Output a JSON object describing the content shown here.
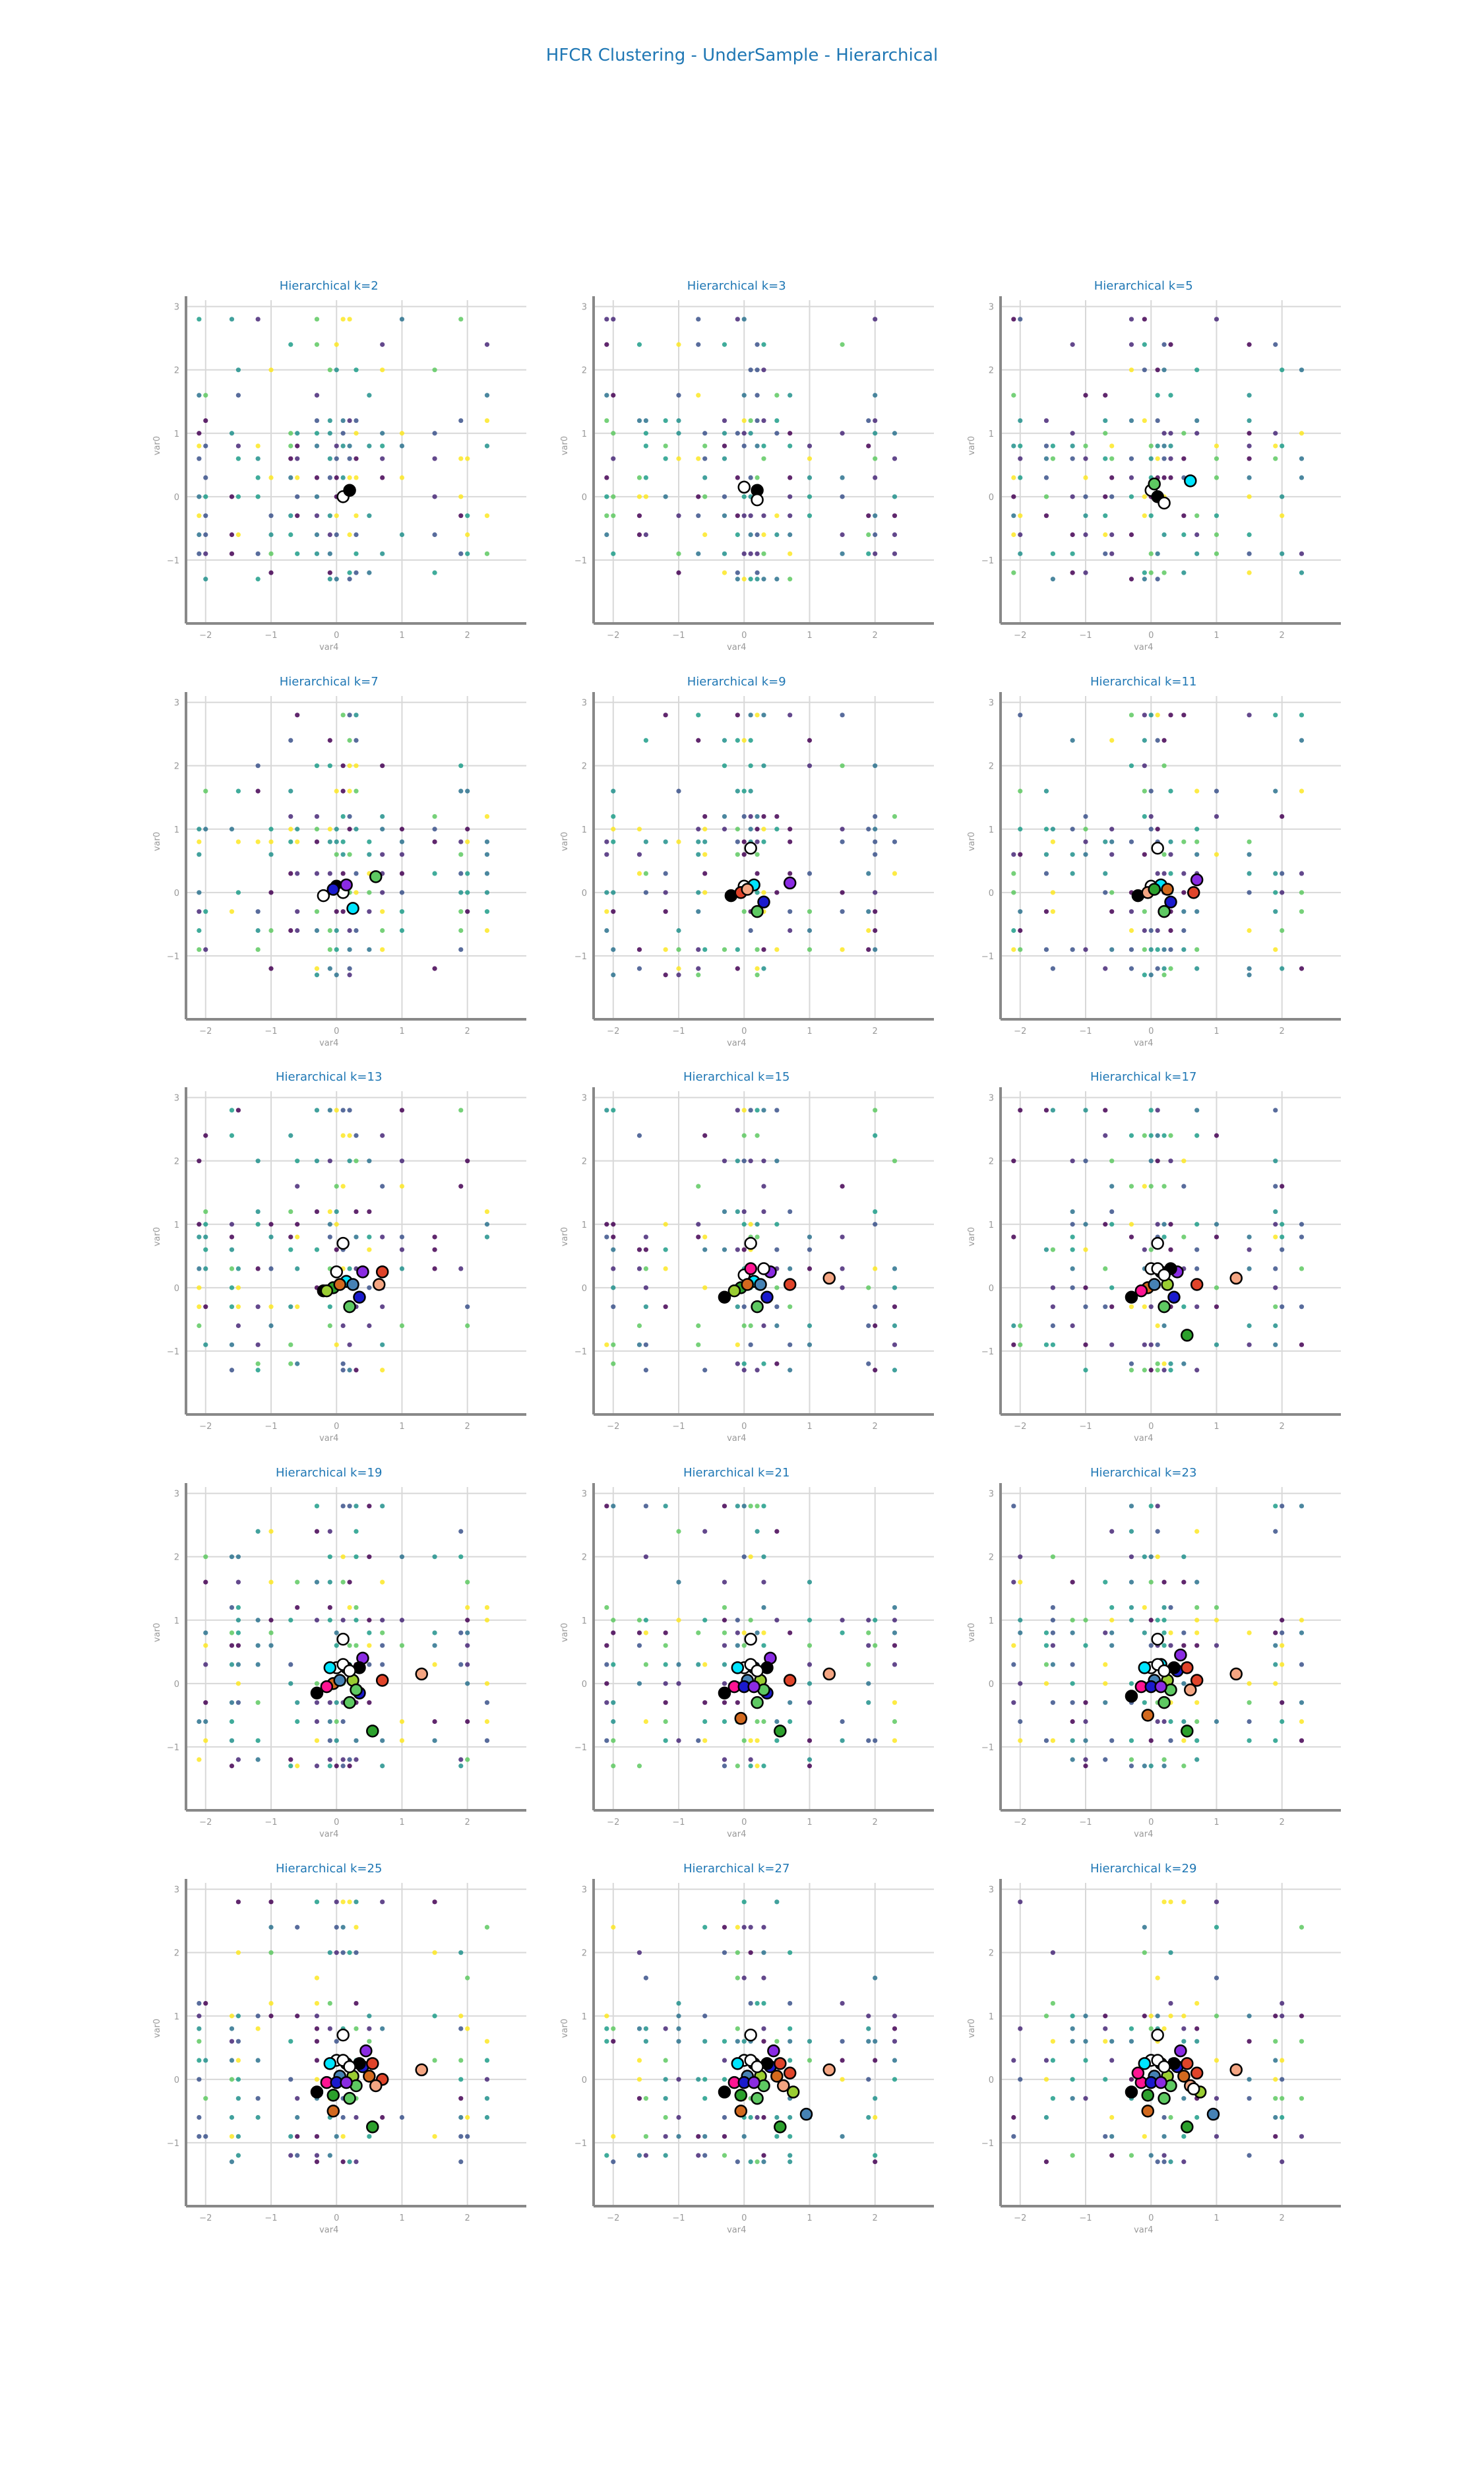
{
  "title": "HFCR Clustering - UnderSample - Hierarchical",
  "chart_data": {
    "type": "scatter",
    "layout": "small-multiples 5x3",
    "xlabel": "var4",
    "ylabel": "var0",
    "xlim": [
      -2.3,
      2.9
    ],
    "ylim": [
      -2.0,
      3.1
    ],
    "xticks": [
      -2,
      -1,
      0,
      1,
      2
    ],
    "yticks": [
      -1,
      0,
      1,
      2,
      3
    ],
    "grid": true,
    "point_columns": [
      -2.1,
      -2.0,
      -1.6,
      -1.5,
      -1.2,
      -1.0,
      -0.7,
      -0.6,
      -0.3,
      -0.1,
      0.0,
      0.1,
      0.2,
      0.3,
      0.5,
      0.7,
      1.0,
      1.5,
      1.9,
      2.0,
      2.3
    ],
    "point_rows": [
      -1.3,
      -1.2,
      -0.9,
      -0.6,
      -0.3,
      0.0,
      0.3,
      0.6,
      0.8,
      1.0,
      1.2,
      1.6,
      2.0,
      2.4,
      2.8
    ],
    "point_palette": [
      "#440154",
      "#3b528b",
      "#21918c",
      "#5ec962",
      "#fde725",
      "#482878",
      "#2c728e",
      "#1f9e89"
    ],
    "centroid_palette": [
      "#ffffff",
      "#000000",
      "#ffffff",
      "#00e5ff",
      "#5ec962",
      "#1a1acd",
      "#8a2be2",
      "#e0442a",
      "#f4a582",
      "#2ca02c",
      "#d2691e",
      "#4682b4",
      "#9acd32",
      "#ff1493"
    ],
    "panels": [
      {
        "title": "Hierarchical k=2",
        "k": 2,
        "centroids": [
          [
            0.1,
            0.0
          ],
          [
            0.2,
            0.1
          ]
        ]
      },
      {
        "title": "Hierarchical k=3",
        "k": 3,
        "centroids": [
          [
            0.0,
            0.15
          ],
          [
            0.2,
            0.1
          ],
          [
            0.2,
            -0.05
          ]
        ]
      },
      {
        "title": "Hierarchical k=5",
        "k": 5,
        "centroids": [
          [
            0.0,
            0.1
          ],
          [
            0.1,
            0.0
          ],
          [
            0.2,
            -0.1
          ],
          [
            0.6,
            0.25
          ],
          [
            0.05,
            0.2
          ]
        ]
      },
      {
        "title": "Hierarchical k=7",
        "k": 7,
        "centroids": [
          [
            -0.2,
            -0.05
          ],
          [
            0.0,
            0.1
          ],
          [
            0.1,
            0.0
          ],
          [
            0.25,
            -0.25
          ],
          [
            0.6,
            0.25
          ],
          [
            -0.05,
            0.05
          ],
          [
            0.15,
            0.12
          ]
        ]
      },
      {
        "title": "Hierarchical k=9",
        "k": 9,
        "centroids": [
          [
            0.1,
            0.7
          ],
          [
            -0.2,
            -0.05
          ],
          [
            0.0,
            0.1
          ],
          [
            0.15,
            0.12
          ],
          [
            0.2,
            -0.3
          ],
          [
            0.3,
            -0.15
          ],
          [
            0.7,
            0.15
          ],
          [
            -0.05,
            0.0
          ],
          [
            0.05,
            0.05
          ]
        ]
      },
      {
        "title": "Hierarchical k=11",
        "k": 11,
        "centroids": [
          [
            0.1,
            0.7
          ],
          [
            -0.2,
            -0.05
          ],
          [
            0.0,
            0.1
          ],
          [
            0.15,
            0.12
          ],
          [
            0.2,
            -0.3
          ],
          [
            0.3,
            -0.15
          ],
          [
            0.7,
            0.2
          ],
          [
            0.65,
            0.0
          ],
          [
            -0.05,
            0.0
          ],
          [
            0.05,
            0.05
          ],
          [
            0.25,
            0.05
          ]
        ]
      },
      {
        "title": "Hierarchical k=13",
        "k": 13,
        "centroids": [
          [
            0.1,
            0.7
          ],
          [
            -0.2,
            -0.05
          ],
          [
            0.0,
            0.25
          ],
          [
            0.15,
            0.1
          ],
          [
            0.2,
            -0.3
          ],
          [
            0.35,
            -0.15
          ],
          [
            0.4,
            0.25
          ],
          [
            0.7,
            0.25
          ],
          [
            0.65,
            0.05
          ],
          [
            -0.05,
            0.0
          ],
          [
            0.05,
            0.05
          ],
          [
            0.25,
            0.05
          ],
          [
            -0.15,
            -0.05
          ]
        ]
      },
      {
        "title": "Hierarchical k=15",
        "k": 15,
        "centroids": [
          [
            0.1,
            0.7
          ],
          [
            -0.3,
            -0.15
          ],
          [
            0.0,
            0.2
          ],
          [
            0.15,
            0.1
          ],
          [
            0.2,
            -0.3
          ],
          [
            0.35,
            -0.15
          ],
          [
            0.4,
            0.25
          ],
          [
            0.7,
            0.05
          ],
          [
            1.3,
            0.15
          ],
          [
            -0.05,
            0.0
          ],
          [
            0.05,
            0.05
          ],
          [
            0.25,
            0.05
          ],
          [
            -0.15,
            -0.05
          ],
          [
            0.1,
            0.3
          ],
          [
            0.3,
            0.3
          ]
        ]
      },
      {
        "title": "Hierarchical k=17",
        "k": 17,
        "centroids": [
          [
            0.1,
            0.7
          ],
          [
            -0.3,
            -0.15
          ],
          [
            0.0,
            0.3
          ],
          [
            0.15,
            0.25
          ],
          [
            0.2,
            -0.3
          ],
          [
            0.35,
            -0.15
          ],
          [
            0.4,
            0.25
          ],
          [
            0.7,
            0.05
          ],
          [
            1.3,
            0.15
          ],
          [
            0.55,
            -0.75
          ],
          [
            -0.05,
            0.0
          ],
          [
            0.05,
            0.05
          ],
          [
            0.25,
            0.05
          ],
          [
            -0.15,
            -0.05
          ],
          [
            0.1,
            0.3
          ],
          [
            0.3,
            0.3
          ],
          [
            0.2,
            0.2
          ]
        ]
      },
      {
        "title": "Hierarchical k=19",
        "k": 19,
        "centroids": [
          [
            0.1,
            0.7
          ],
          [
            -0.3,
            -0.15
          ],
          [
            0.0,
            0.25
          ],
          [
            0.15,
            0.25
          ],
          [
            0.2,
            -0.3
          ],
          [
            0.35,
            -0.15
          ],
          [
            0.4,
            0.4
          ],
          [
            0.7,
            0.05
          ],
          [
            1.3,
            0.15
          ],
          [
            0.55,
            -0.75
          ],
          [
            -0.05,
            0.0
          ],
          [
            0.05,
            0.05
          ],
          [
            0.25,
            0.05
          ],
          [
            -0.15,
            -0.05
          ],
          [
            0.1,
            0.3
          ],
          [
            0.35,
            0.25
          ],
          [
            0.2,
            0.2
          ],
          [
            -0.1,
            0.25
          ],
          [
            0.3,
            -0.1
          ]
        ]
      },
      {
        "title": "Hierarchical k=21",
        "k": 21,
        "centroids": [
          [
            0.1,
            0.7
          ],
          [
            -0.3,
            -0.15
          ],
          [
            0.0,
            0.25
          ],
          [
            0.15,
            0.25
          ],
          [
            0.2,
            -0.3
          ],
          [
            0.35,
            -0.15
          ],
          [
            0.4,
            0.4
          ],
          [
            0.7,
            0.05
          ],
          [
            1.3,
            0.15
          ],
          [
            0.55,
            -0.75
          ],
          [
            -0.05,
            -0.55
          ],
          [
            0.05,
            0.05
          ],
          [
            0.25,
            0.05
          ],
          [
            -0.15,
            -0.05
          ],
          [
            0.1,
            0.3
          ],
          [
            0.35,
            0.25
          ],
          [
            0.2,
            0.2
          ],
          [
            -0.1,
            0.25
          ],
          [
            0.3,
            -0.1
          ],
          [
            0.0,
            -0.05
          ],
          [
            0.15,
            -0.05
          ]
        ]
      },
      {
        "title": "Hierarchical k=23",
        "k": 23,
        "centroids": [
          [
            0.1,
            0.7
          ],
          [
            -0.3,
            -0.2
          ],
          [
            0.0,
            0.25
          ],
          [
            0.15,
            0.3
          ],
          [
            0.2,
            -0.3
          ],
          [
            0.4,
            0.2
          ],
          [
            0.45,
            0.45
          ],
          [
            0.7,
            0.05
          ],
          [
            1.3,
            0.15
          ],
          [
            0.55,
            -0.75
          ],
          [
            -0.05,
            -0.5
          ],
          [
            0.05,
            0.05
          ],
          [
            0.25,
            0.05
          ],
          [
            -0.15,
            -0.05
          ],
          [
            0.1,
            0.3
          ],
          [
            0.35,
            0.25
          ],
          [
            0.2,
            0.2
          ],
          [
            -0.1,
            0.25
          ],
          [
            0.3,
            -0.1
          ],
          [
            0.0,
            -0.05
          ],
          [
            0.15,
            -0.05
          ],
          [
            0.55,
            0.25
          ],
          [
            0.6,
            -0.1
          ]
        ]
      },
      {
        "title": "Hierarchical k=25",
        "k": 25,
        "centroids": [
          [
            0.1,
            0.7
          ],
          [
            -0.3,
            -0.2
          ],
          [
            0.0,
            0.3
          ],
          [
            0.15,
            0.25
          ],
          [
            0.2,
            -0.3
          ],
          [
            0.4,
            0.2
          ],
          [
            0.45,
            0.45
          ],
          [
            0.7,
            0.0
          ],
          [
            1.3,
            0.15
          ],
          [
            0.55,
            -0.75
          ],
          [
            -0.05,
            -0.5
          ],
          [
            0.05,
            0.05
          ],
          [
            0.25,
            0.05
          ],
          [
            -0.15,
            -0.05
          ],
          [
            0.1,
            0.3
          ],
          [
            0.35,
            0.25
          ],
          [
            0.2,
            0.2
          ],
          [
            -0.1,
            0.25
          ],
          [
            0.3,
            -0.1
          ],
          [
            0.0,
            -0.05
          ],
          [
            0.15,
            -0.05
          ],
          [
            0.55,
            0.25
          ],
          [
            0.6,
            -0.1
          ],
          [
            -0.05,
            -0.25
          ],
          [
            0.5,
            0.05
          ]
        ]
      },
      {
        "title": "Hierarchical k=27",
        "k": 27,
        "centroids": [
          [
            0.1,
            0.7
          ],
          [
            -0.3,
            -0.2
          ],
          [
            0.0,
            0.3
          ],
          [
            0.15,
            0.25
          ],
          [
            0.2,
            -0.3
          ],
          [
            0.4,
            0.2
          ],
          [
            0.45,
            0.45
          ],
          [
            0.7,
            0.1
          ],
          [
            1.3,
            0.15
          ],
          [
            0.55,
            -0.75
          ],
          [
            -0.05,
            -0.5
          ],
          [
            0.05,
            0.05
          ],
          [
            0.25,
            0.05
          ],
          [
            -0.15,
            -0.05
          ],
          [
            0.1,
            0.3
          ],
          [
            0.35,
            0.25
          ],
          [
            0.2,
            0.2
          ],
          [
            -0.1,
            0.25
          ],
          [
            0.3,
            -0.1
          ],
          [
            0.0,
            -0.05
          ],
          [
            0.15,
            -0.05
          ],
          [
            0.55,
            0.25
          ],
          [
            0.6,
            -0.1
          ],
          [
            -0.05,
            -0.25
          ],
          [
            0.5,
            0.05
          ],
          [
            0.95,
            -0.55
          ],
          [
            0.75,
            -0.2
          ]
        ]
      },
      {
        "title": "Hierarchical k=29",
        "k": 29,
        "centroids": [
          [
            0.1,
            0.7
          ],
          [
            -0.3,
            -0.2
          ],
          [
            0.0,
            0.3
          ],
          [
            0.15,
            0.25
          ],
          [
            0.2,
            -0.3
          ],
          [
            0.4,
            0.2
          ],
          [
            0.45,
            0.45
          ],
          [
            0.7,
            0.1
          ],
          [
            1.3,
            0.15
          ],
          [
            0.55,
            -0.75
          ],
          [
            -0.05,
            -0.5
          ],
          [
            0.05,
            0.05
          ],
          [
            0.25,
            0.05
          ],
          [
            -0.15,
            -0.05
          ],
          [
            0.1,
            0.3
          ],
          [
            0.35,
            0.25
          ],
          [
            0.2,
            0.2
          ],
          [
            -0.1,
            0.25
          ],
          [
            0.3,
            -0.1
          ],
          [
            0.0,
            -0.05
          ],
          [
            0.15,
            -0.05
          ],
          [
            0.55,
            0.25
          ],
          [
            0.6,
            -0.1
          ],
          [
            -0.05,
            -0.25
          ],
          [
            0.5,
            0.05
          ],
          [
            0.95,
            -0.55
          ],
          [
            0.75,
            -0.2
          ],
          [
            -0.2,
            0.1
          ],
          [
            0.65,
            -0.15
          ]
        ]
      }
    ]
  }
}
